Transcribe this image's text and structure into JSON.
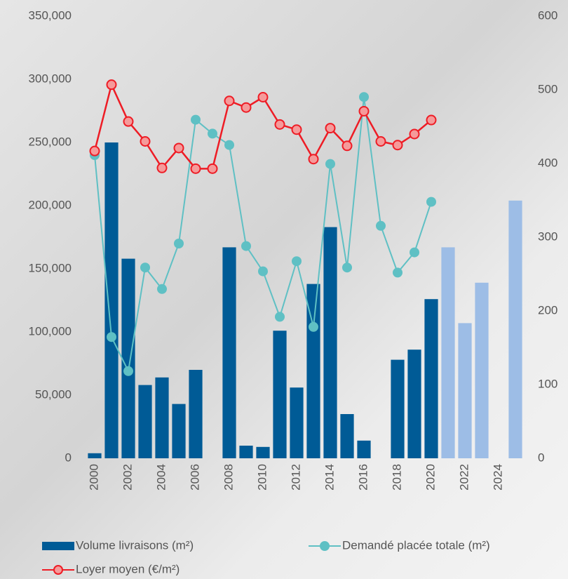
{
  "chart_data": {
    "type": "combo",
    "categories": [
      "2000",
      null,
      "2002",
      null,
      "2004",
      null,
      "2006",
      null,
      "2008",
      null,
      "2010",
      null,
      "2012",
      null,
      "2014",
      null,
      "2016",
      null,
      "2018",
      null,
      "2020",
      null,
      "2022",
      null,
      "2024",
      null
    ],
    "series": [
      {
        "name": "Volume livraisons (m²)",
        "type": "bar",
        "color": "#005b96",
        "colors": [
          "#005b96",
          "#005b96",
          "#005b96",
          "#005b96",
          "#005b96",
          "#005b96",
          "#005b96",
          "#005b96",
          "#005b96",
          "#005b96",
          "#005b96",
          "#005b96",
          "#005b96",
          "#005b96",
          "#005b96",
          "#005b96",
          "#005b96",
          "#005b96",
          "#005b96",
          "#005b96",
          "#005b96",
          "#9dbde6",
          "#9dbde6",
          "#9dbde6",
          "#9dbde6",
          "#9dbde6"
        ],
        "values": [
          4000,
          250000,
          158000,
          58000,
          64000,
          43000,
          70000,
          null,
          167000,
          10000,
          9000,
          101000,
          56000,
          138000,
          183000,
          35000,
          14000,
          null,
          78000,
          86000,
          126000,
          167000,
          107000,
          139000,
          null,
          204000
        ]
      },
      {
        "name": "Demandé placée totale (m²)",
        "type": "line",
        "color": "#5fc0c4",
        "values": [
          240000,
          96000,
          69000,
          151000,
          134000,
          170000,
          268000,
          257000,
          248000,
          168000,
          148000,
          112000,
          156000,
          104000,
          233000,
          151000,
          286000,
          184000,
          147000,
          163000,
          203000,
          null,
          null,
          null,
          null,
          null
        ]
      },
      {
        "name": "Loyer moyen (€/m²)",
        "type": "line",
        "axis": "y2",
        "color": "#ee1c25",
        "values": [
          417,
          507,
          457,
          430,
          394,
          421,
          393,
          393,
          485,
          476,
          490,
          453,
          446,
          406,
          448,
          424,
          471,
          430,
          425,
          440,
          459,
          null,
          null,
          null,
          null,
          null
        ]
      }
    ],
    "ylim": [
      0,
      350000
    ],
    "yticks": [
      0,
      {
        "value": 50000,
        "label": "50,000"
      },
      {
        "value": 100000,
        "label": "100,000"
      },
      {
        "value": 150000,
        "label": "150,000"
      },
      {
        "value": 200000,
        "label": "200,000"
      },
      {
        "value": 250000,
        "label": "250,000"
      },
      {
        "value": 300000,
        "label": "300,000"
      },
      {
        "value": 350000,
        "label": "350,000"
      }
    ],
    "y2lim": [
      0,
      600
    ],
    "y2ticks": [
      0,
      100,
      200,
      300,
      400,
      500,
      600
    ],
    "grid": false
  }
}
